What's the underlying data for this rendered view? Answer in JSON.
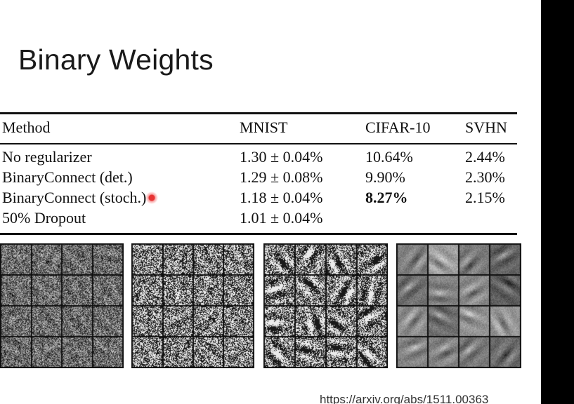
{
  "slide": {
    "title": "Binary Weights",
    "footer_url": "https://arxiv.org/abs/1511.00363"
  },
  "table": {
    "headers": [
      "Method",
      "MNIST",
      "CIFAR-10",
      "SVHN"
    ],
    "rows": [
      {
        "method": "No regularizer",
        "mnist": "1.30 ± 0.04%",
        "cifar10": "10.64%",
        "svhn": "2.44%"
      },
      {
        "method": "BinaryConnect (det.)",
        "mnist": "1.29 ± 0.08%",
        "cifar10": "9.90%",
        "svhn": "2.30%"
      },
      {
        "method": "BinaryConnect (stoch.)",
        "mnist": "1.18 ± 0.04%",
        "cifar10": "8.27%",
        "svhn": "2.15%"
      },
      {
        "method": "50% Dropout",
        "mnist": "1.01 ± 0.04%",
        "cifar10": "",
        "svhn": ""
      }
    ]
  },
  "filter_panels": [
    {
      "name": "weight-filters-panel-1",
      "style": "fine-noise",
      "grid": "4x4"
    },
    {
      "name": "weight-filters-panel-2",
      "style": "binary-noise",
      "grid": "4x4"
    },
    {
      "name": "weight-filters-panel-3",
      "style": "binary-strokes",
      "grid": "4x4"
    },
    {
      "name": "weight-filters-panel-4",
      "style": "smooth-gray",
      "grid": "4x4"
    }
  ],
  "colors": {
    "background": "#ffffff",
    "side_bar": "#000000",
    "cursor": "#e62828"
  }
}
